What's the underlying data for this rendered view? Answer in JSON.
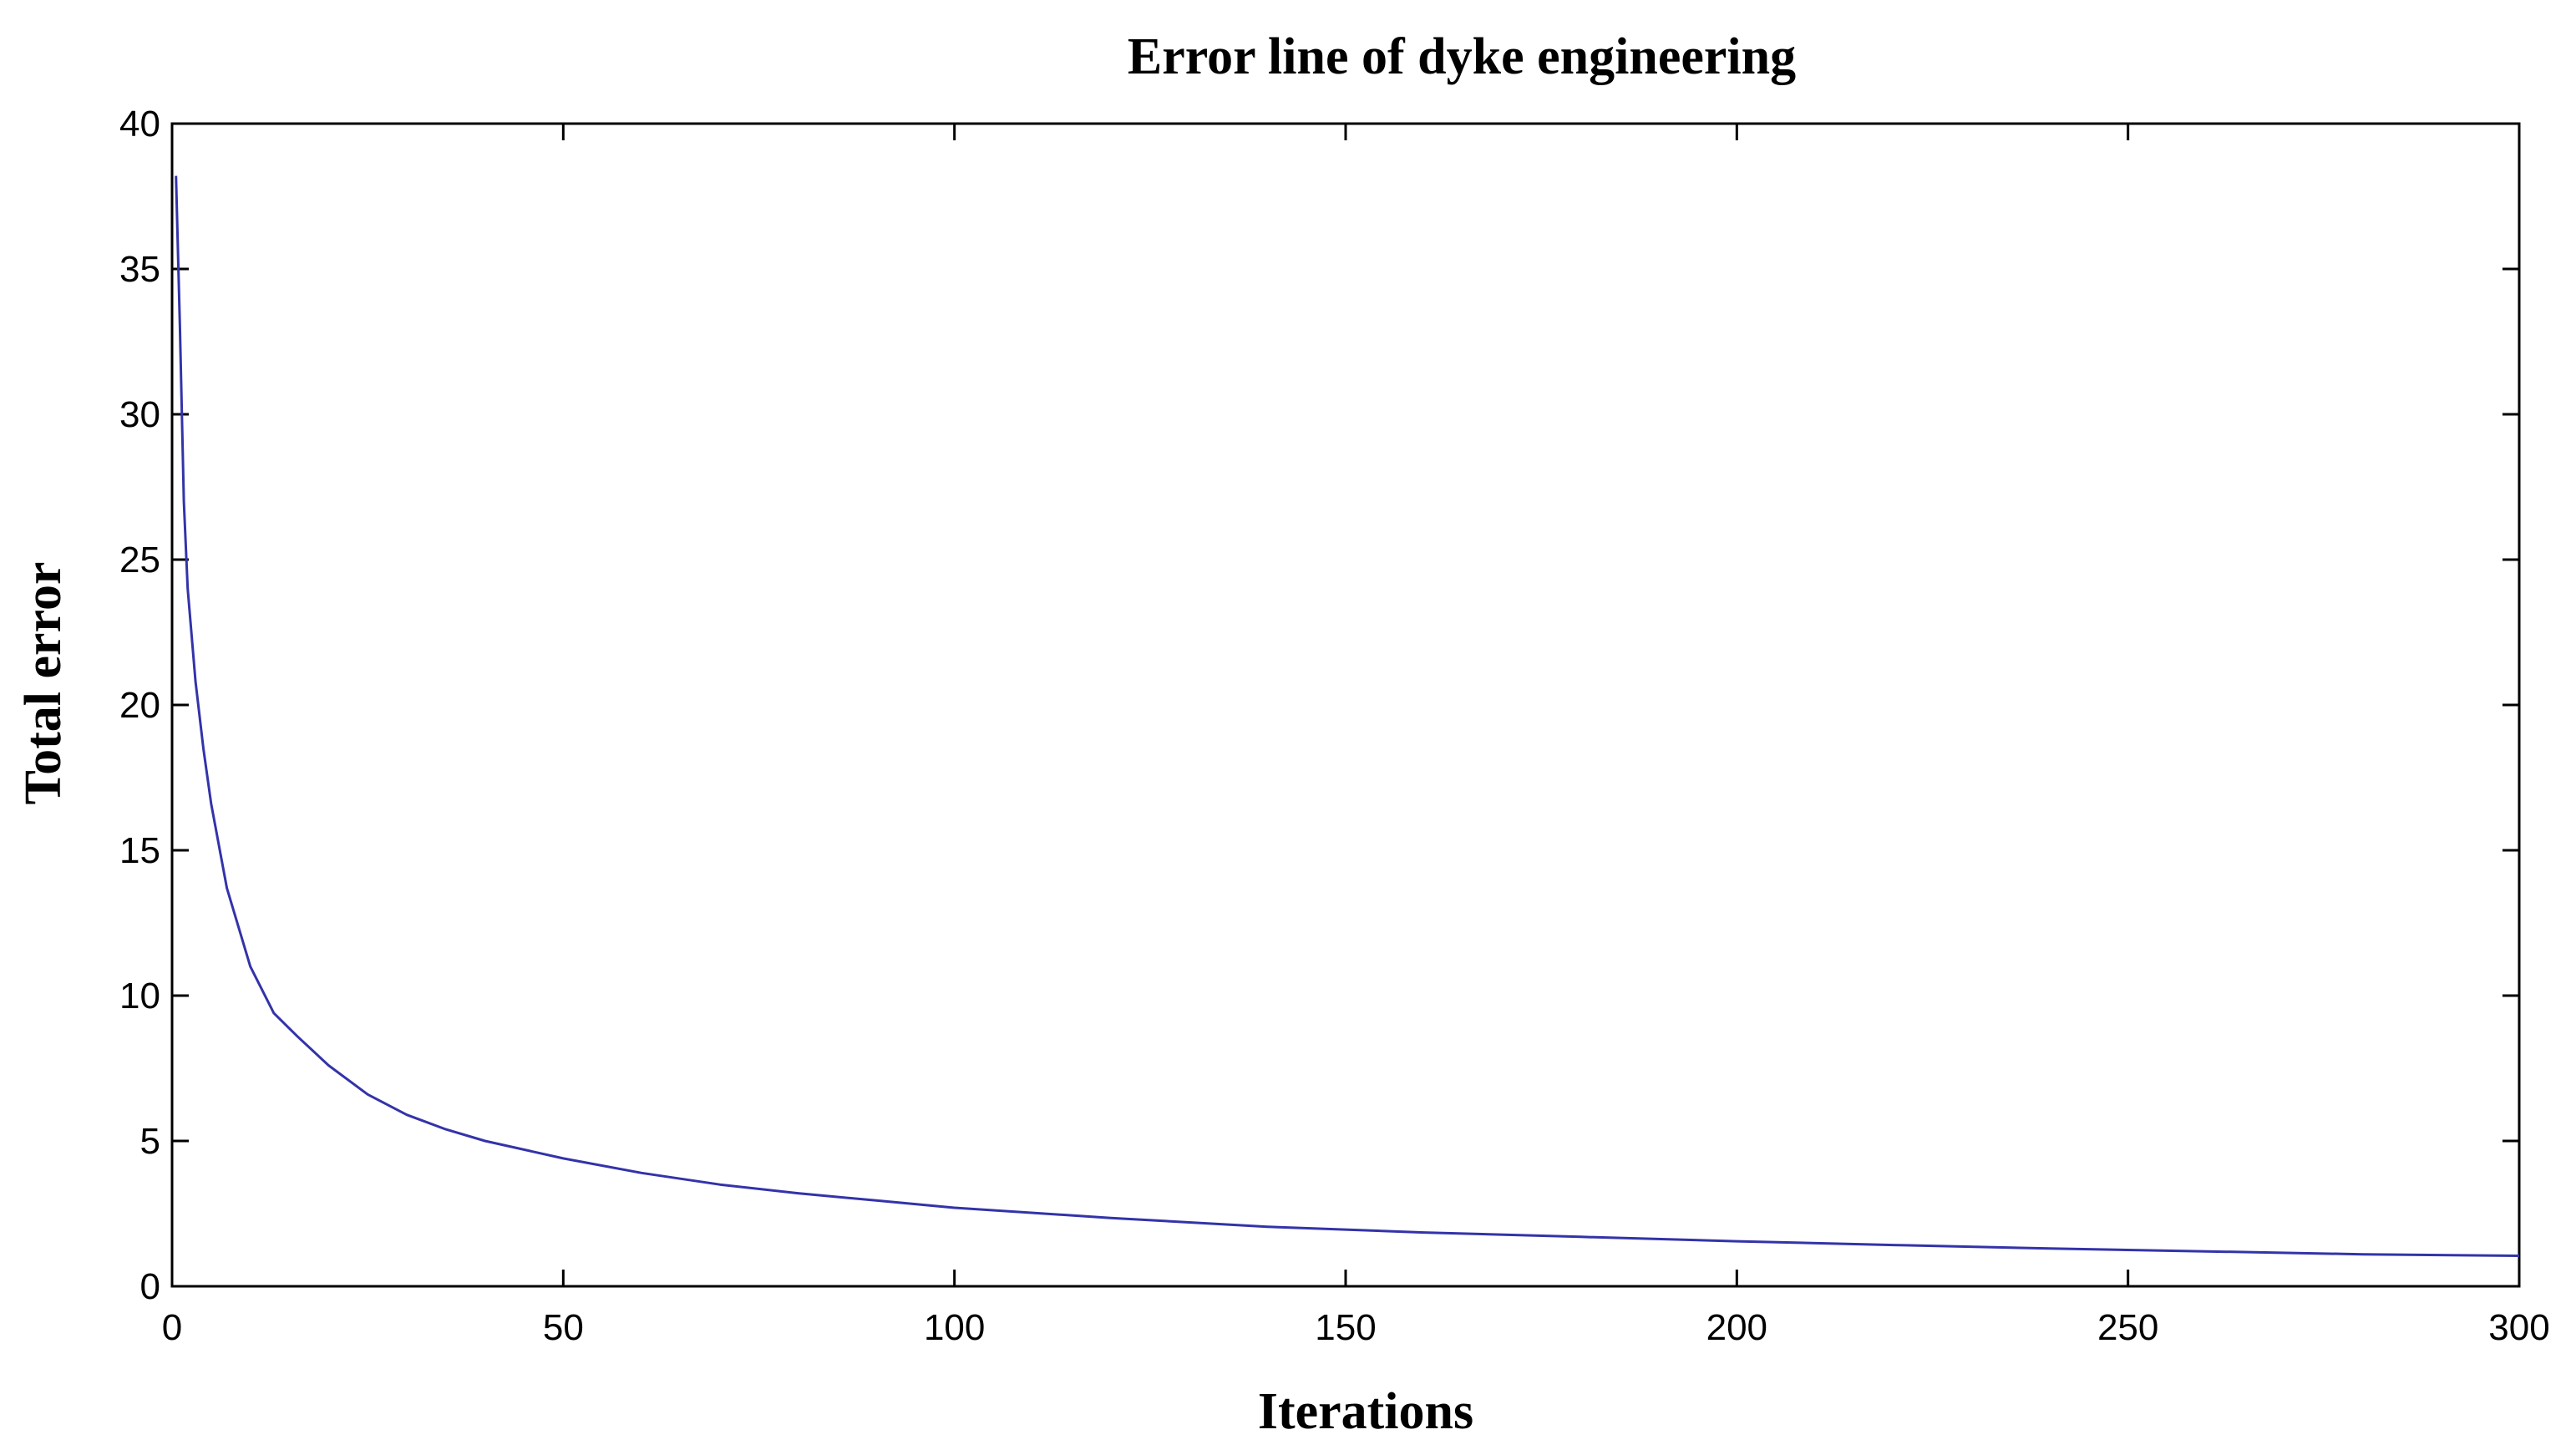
{
  "chart_data": {
    "type": "line",
    "title": "Error line of dyke engineering",
    "xlabel": "Iterations",
    "ylabel": "Total error",
    "xlim": [
      0,
      300
    ],
    "ylim": [
      0,
      40
    ],
    "xticks": [
      0,
      50,
      100,
      150,
      200,
      250,
      300
    ],
    "yticks": [
      0,
      5,
      10,
      15,
      20,
      25,
      30,
      35,
      40
    ],
    "xtick_labels": [
      "0",
      "50",
      "100",
      "150",
      "200",
      "250",
      "300"
    ],
    "ytick_labels": [
      "0",
      "5",
      "10",
      "15",
      "20",
      "25",
      "30",
      "35",
      "40"
    ],
    "grid": false,
    "series": [
      {
        "color": "#3333aa",
        "x": [
          0.5,
          1,
          1.5,
          2,
          3,
          4,
          5,
          7,
          10,
          13,
          16,
          20,
          25,
          30,
          35,
          40,
          50,
          60,
          70,
          80,
          90,
          100,
          120,
          140,
          160,
          180,
          200,
          220,
          240,
          260,
          280,
          300
        ],
        "y": [
          38.2,
          33.0,
          27.0,
          24.0,
          20.8,
          18.5,
          16.6,
          13.7,
          11.0,
          9.4,
          8.6,
          7.6,
          6.6,
          5.9,
          5.4,
          5.0,
          4.4,
          3.9,
          3.5,
          3.2,
          2.95,
          2.7,
          2.35,
          2.05,
          1.85,
          1.7,
          1.55,
          1.42,
          1.3,
          1.2,
          1.1,
          1.05
        ]
      }
    ]
  }
}
